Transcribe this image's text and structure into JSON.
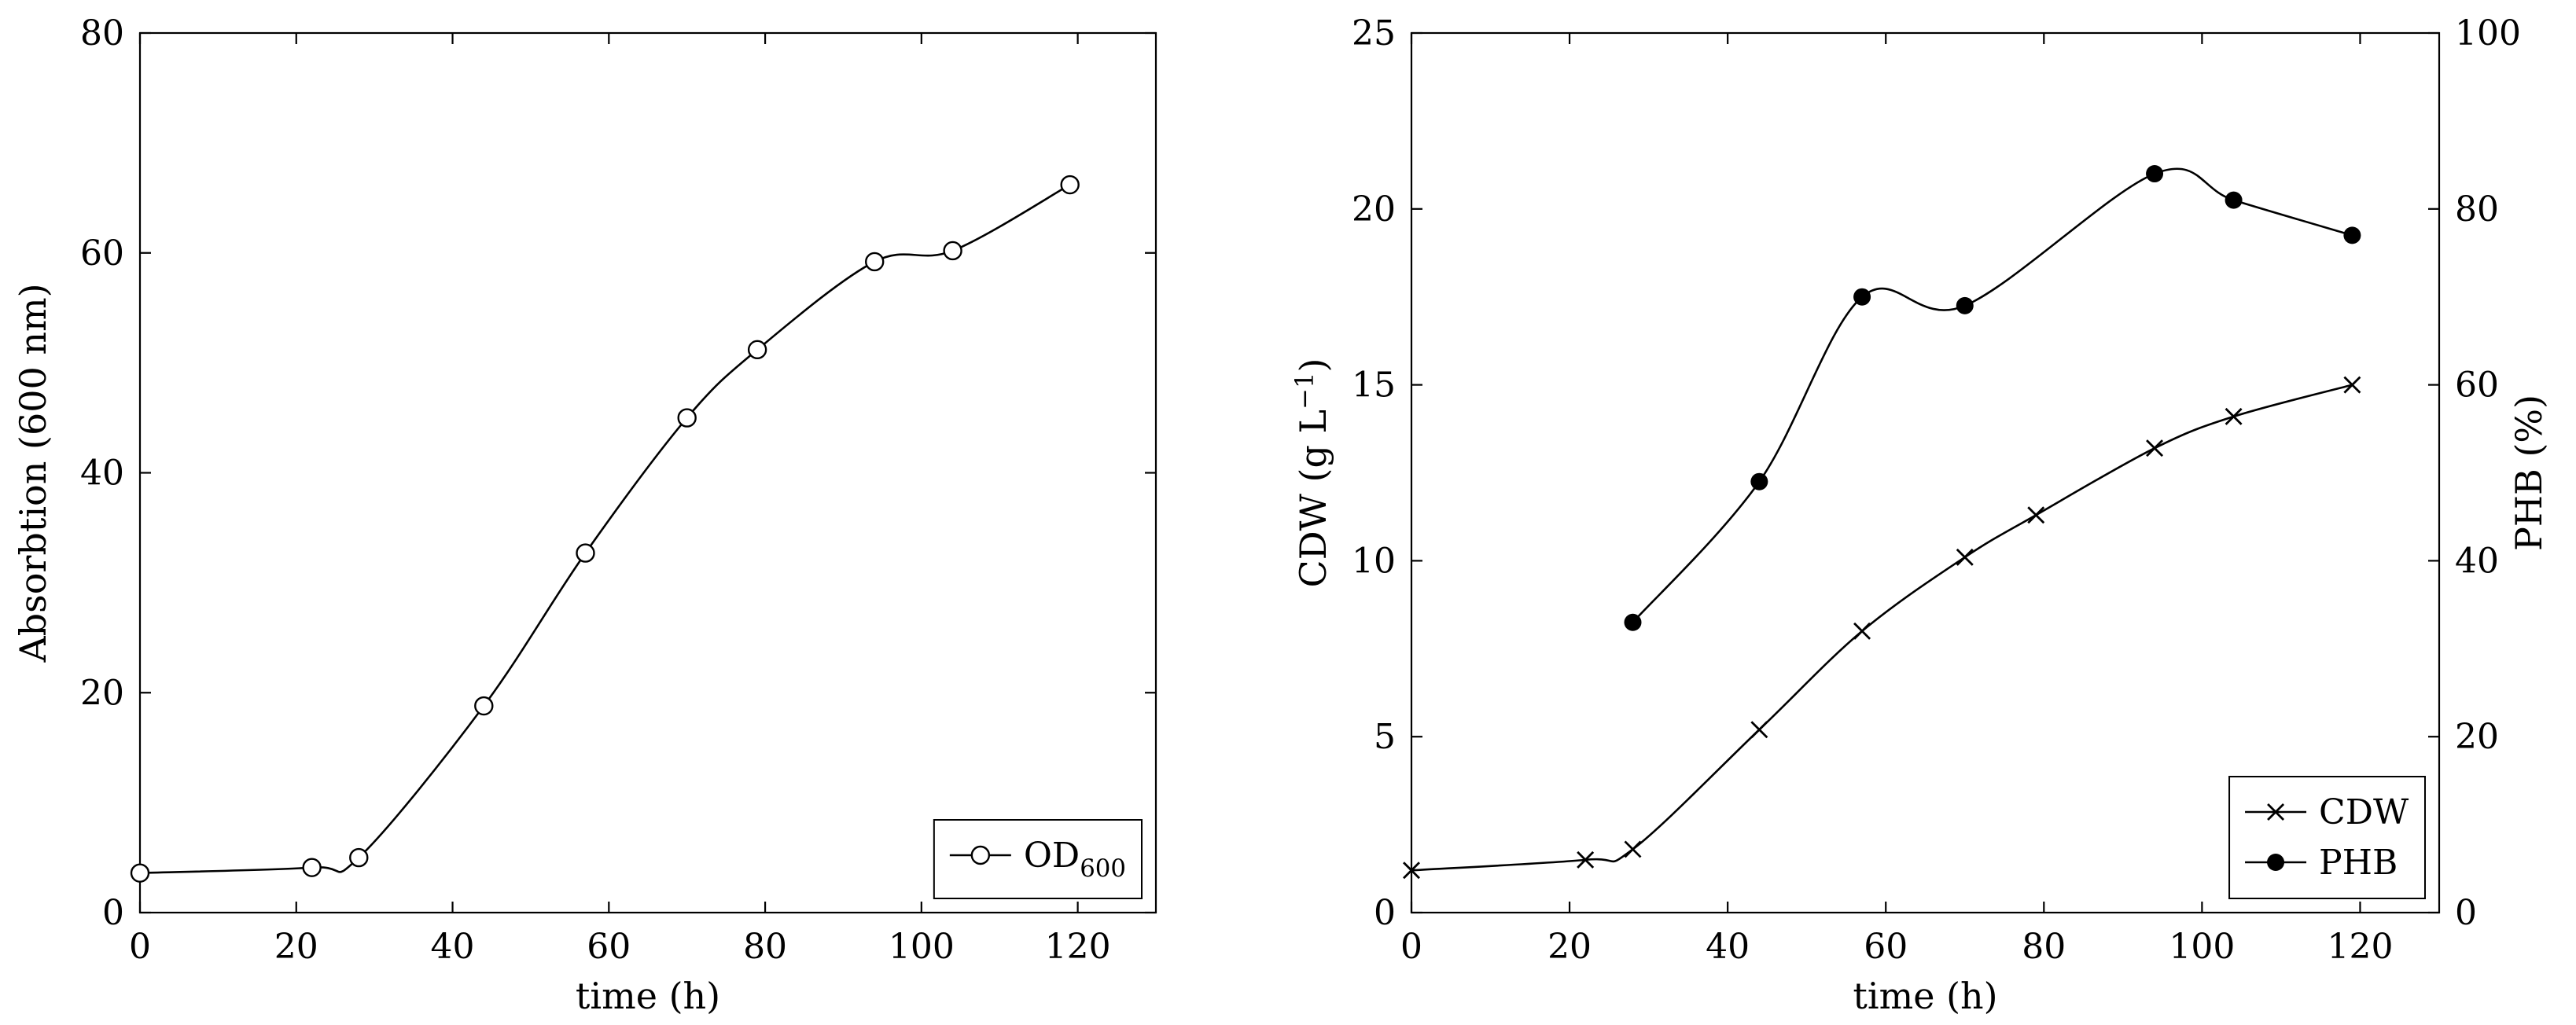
{
  "page": {
    "background": "#ffffff",
    "axis_color": "#000000"
  },
  "chart_data": [
    {
      "type": "line",
      "title": "",
      "xlabel": "time (h)",
      "ylabel_segments": [
        {
          "t": "Absorbtion (600 nm)"
        }
      ],
      "xlim": [
        0,
        130
      ],
      "ylim": [
        0,
        80
      ],
      "xticks": [
        0,
        20,
        40,
        60,
        80,
        100,
        120
      ],
      "yticks": [
        0,
        20,
        40,
        60,
        80
      ],
      "grid": false,
      "legend_position": "bottom-right",
      "series": [
        {
          "name": "OD600",
          "label_segments": [
            {
              "t": "OD"
            },
            {
              "t": "600",
              "style": "sub"
            }
          ],
          "marker": "open-circle",
          "color": "#000000",
          "smooth": true,
          "x": [
            0,
            22,
            28,
            44,
            57,
            70,
            79,
            94,
            104,
            119
          ],
          "y": [
            3.6,
            4.1,
            5.0,
            18.8,
            32.7,
            45.0,
            51.2,
            59.2,
            60.2,
            66.2
          ]
        }
      ]
    },
    {
      "type": "line",
      "title": "",
      "xlabel": "time (h)",
      "ylabel_segments": [
        {
          "t": "CDW (g L"
        },
        {
          "t": "−1",
          "style": "sup"
        },
        {
          "t": ")"
        }
      ],
      "y2label_segments": [
        {
          "t": "PHB (%)"
        }
      ],
      "xlim": [
        0,
        130
      ],
      "ylim": [
        0,
        25
      ],
      "y2lim": [
        0,
        100
      ],
      "xticks": [
        0,
        20,
        40,
        60,
        80,
        100,
        120
      ],
      "yticks": [
        0,
        5,
        10,
        15,
        20,
        25
      ],
      "y2ticks": [
        0,
        20,
        40,
        60,
        80,
        100
      ],
      "grid": false,
      "legend_position": "bottom-right",
      "series": [
        {
          "name": "CDW",
          "label_segments": [
            {
              "t": "CDW"
            }
          ],
          "marker": "x",
          "axis": "left",
          "color": "#000000",
          "smooth": true,
          "x": [
            0,
            22,
            28,
            44,
            57,
            70,
            79,
            94,
            104,
            119
          ],
          "y": [
            1.2,
            1.5,
            1.8,
            5.2,
            8.0,
            10.1,
            11.3,
            13.2,
            14.1,
            15.0
          ]
        },
        {
          "name": "PHB",
          "label_segments": [
            {
              "t": "PHB"
            }
          ],
          "marker": "filled-circle",
          "axis": "right",
          "color": "#000000",
          "smooth": true,
          "x": [
            28,
            44,
            57,
            70,
            94,
            104,
            119
          ],
          "y": [
            33,
            49,
            70,
            69,
            84,
            81,
            77
          ]
        }
      ]
    }
  ]
}
